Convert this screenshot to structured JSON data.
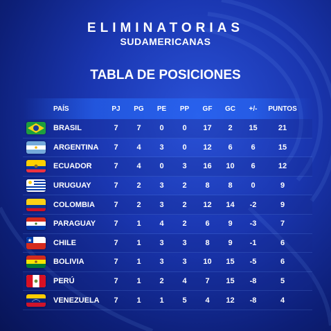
{
  "header": {
    "title_line1": "ELIMINATORIAS",
    "title_line2": "SUDAMERICANAS",
    "subtitle": "TABLA DE POSICIONES"
  },
  "table": {
    "columns": [
      "PAÍS",
      "PJ",
      "PG",
      "PE",
      "PP",
      "GF",
      "GC",
      "+/-",
      "PUNTOS"
    ],
    "rows": [
      {
        "flag": "brazil-flag-icon",
        "name": "BRASIL",
        "pj": "7",
        "pg": "7",
        "pe": "0",
        "pp": "0",
        "gf": "17",
        "gc": "2",
        "dif": "15",
        "pts": "21"
      },
      {
        "flag": "argentina-flag-icon",
        "name": "ARGENTINA",
        "pj": "7",
        "pg": "4",
        "pe": "3",
        "pp": "0",
        "gf": "12",
        "gc": "6",
        "dif": "6",
        "pts": "15"
      },
      {
        "flag": "ecuador-flag-icon",
        "name": "ECUADOR",
        "pj": "7",
        "pg": "4",
        "pe": "0",
        "pp": "3",
        "gf": "16",
        "gc": "10",
        "dif": "6",
        "pts": "12"
      },
      {
        "flag": "uruguay-flag-icon",
        "name": "URUGUAY",
        "pj": "7",
        "pg": "2",
        "pe": "3",
        "pp": "2",
        "gf": "8",
        "gc": "8",
        "dif": "0",
        "pts": "9"
      },
      {
        "flag": "colombia-flag-icon",
        "name": "COLOMBIA",
        "pj": "7",
        "pg": "2",
        "pe": "3",
        "pp": "2",
        "gf": "12",
        "gc": "14",
        "dif": "-2",
        "pts": "9"
      },
      {
        "flag": "paraguay-flag-icon",
        "name": "PARAGUAY",
        "pj": "7",
        "pg": "1",
        "pe": "4",
        "pp": "2",
        "gf": "6",
        "gc": "9",
        "dif": "-3",
        "pts": "7"
      },
      {
        "flag": "chile-flag-icon",
        "name": "CHILE",
        "pj": "7",
        "pg": "1",
        "pe": "3",
        "pp": "3",
        "gf": "8",
        "gc": "9",
        "dif": "-1",
        "pts": "6"
      },
      {
        "flag": "bolivia-flag-icon",
        "name": "BOLIVIA",
        "pj": "7",
        "pg": "1",
        "pe": "3",
        "pp": "3",
        "gf": "10",
        "gc": "15",
        "dif": "-5",
        "pts": "6"
      },
      {
        "flag": "peru-flag-icon",
        "name": "PERÚ",
        "pj": "7",
        "pg": "1",
        "pe": "2",
        "pp": "4",
        "gf": "7",
        "gc": "15",
        "dif": "-8",
        "pts": "5"
      },
      {
        "flag": "venezuela-flag-icon",
        "name": "VENEZUELA",
        "pj": "7",
        "pg": "1",
        "pe": "1",
        "pp": "5",
        "gf": "4",
        "gc": "12",
        "dif": "-8",
        "pts": "4"
      }
    ]
  },
  "colors": {
    "background": "#1a36b0",
    "header_bar": "#2f6ef5",
    "text": "#ffffff"
  }
}
